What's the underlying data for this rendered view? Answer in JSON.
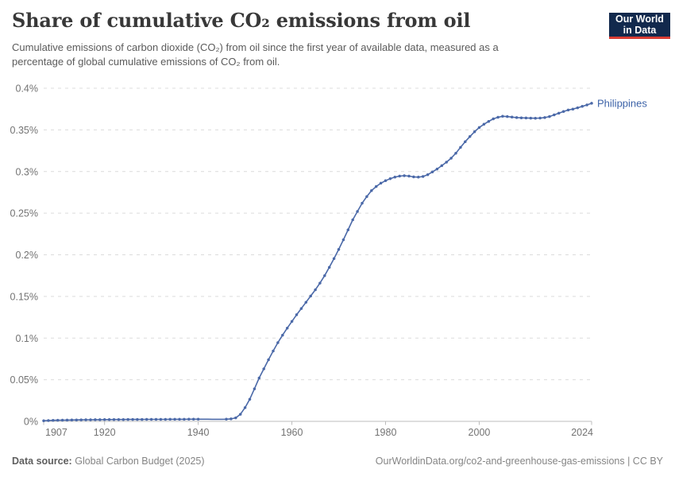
{
  "header": {
    "title": "Share of cumulative CO₂ emissions from oil",
    "subtitle": "Cumulative emissions of carbon dioxide (CO₂) from oil since the first year of available data, measured as a percentage of global cumulative emissions of CO₂ from oil.",
    "subtitle_lines": [
      "Cumulative emissions of carbon dioxide (CO₂) from oil since the first year of available data, measured as a",
      "percentage of global cumulative emissions of CO₂ from oil."
    ],
    "logo": {
      "line1": "Our World",
      "line2": "in Data"
    }
  },
  "footer": {
    "source_label": "Data source:",
    "source_value": "Global Carbon Budget (2025)",
    "citation": "OurWorldinData.org/co2-and-greenhouse-gas-emissions | CC BY"
  },
  "colors": {
    "line": "#4b69a8",
    "entity_label": "#3d63a8",
    "gridline": "#dcdcdc",
    "axis_baseline": "#bcbcbc",
    "tick_text": "#737373",
    "logo_navy": "#12294d",
    "logo_red": "#d93d34"
  },
  "chart_data": {
    "type": "line",
    "title": "Share of cumulative CO₂ emissions from oil",
    "xlabel": "",
    "ylabel": "",
    "xlim": [
      1907,
      2024
    ],
    "ylim": [
      0,
      0.4
    ],
    "grid": "horizontal-dashed",
    "legend_position": "end-of-line-label",
    "x_ticks": [
      1907,
      1920,
      1940,
      1960,
      1980,
      2000,
      2024
    ],
    "y_ticks": [
      0,
      0.05,
      0.1,
      0.15,
      0.2,
      0.25,
      0.3,
      0.35,
      0.4
    ],
    "y_tick_labels": [
      "0%",
      "0.05%",
      "0.1%",
      "0.15%",
      "0.2%",
      "0.25%",
      "0.3%",
      "0.35%",
      "0.4%"
    ],
    "series": [
      {
        "name": "Philippines",
        "unit": "%",
        "x_start": 1907,
        "marker_gap_years": [
          1941,
          1942,
          1943,
          1944,
          1945
        ],
        "values": [
          0.0008,
          0.001,
          0.0012,
          0.0013,
          0.0014,
          0.0015,
          0.0016,
          0.0017,
          0.0018,
          0.0019,
          0.0019,
          0.002,
          0.002,
          0.0021,
          0.0021,
          0.0022,
          0.0022,
          0.0022,
          0.0023,
          0.0023,
          0.0023,
          0.0023,
          0.0024,
          0.0024,
          0.0024,
          0.0024,
          0.0024,
          0.0025,
          0.0025,
          0.0025,
          0.0025,
          0.0026,
          0.0026,
          0.0026,
          0.0026,
          0.0026,
          0.0025,
          0.0025,
          0.0025,
          0.0026,
          0.003,
          0.0042,
          0.0085,
          0.0165,
          0.0265,
          0.039,
          0.052,
          0.063,
          0.074,
          0.0845,
          0.0945,
          0.1035,
          0.112,
          0.12,
          0.128,
          0.1355,
          0.143,
          0.1505,
          0.158,
          0.166,
          0.175,
          0.185,
          0.1955,
          0.2065,
          0.218,
          0.23,
          0.242,
          0.252,
          0.262,
          0.27,
          0.277,
          0.282,
          0.286,
          0.289,
          0.2915,
          0.2933,
          0.2945,
          0.295,
          0.2945,
          0.2936,
          0.2933,
          0.294,
          0.2962,
          0.2995,
          0.303,
          0.307,
          0.3112,
          0.316,
          0.322,
          0.329,
          0.3358,
          0.342,
          0.3478,
          0.3528,
          0.3568,
          0.3602,
          0.3632,
          0.3652,
          0.3663,
          0.366,
          0.3653,
          0.3648,
          0.3645,
          0.3643,
          0.3641,
          0.364,
          0.3642,
          0.3648,
          0.366,
          0.368,
          0.37,
          0.372,
          0.3738,
          0.375,
          0.3765,
          0.3782,
          0.38,
          0.382
        ]
      }
    ]
  }
}
